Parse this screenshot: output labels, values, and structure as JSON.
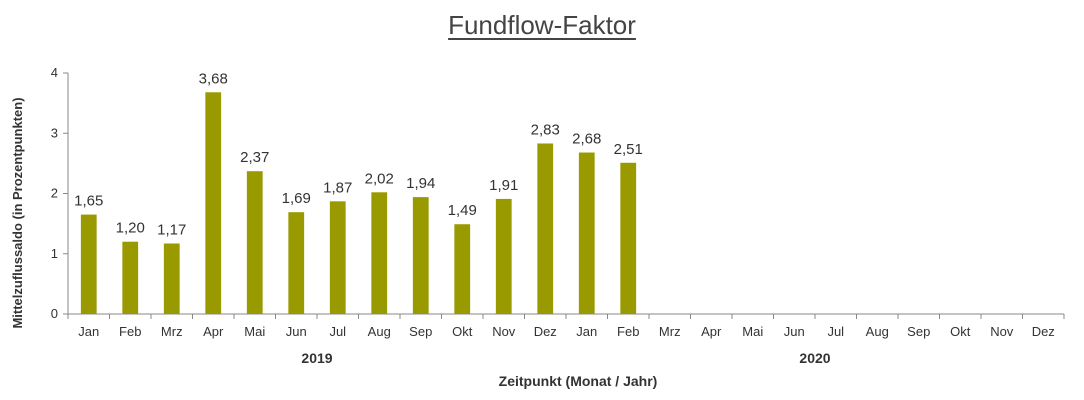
{
  "chart_data": {
    "type": "bar",
    "title": "Fundflow-Faktor",
    "ylabel": "Mittelzuflussaldo (in Prozentpunkten)",
    "xlabel": "Zeitpunkt (Monat / Jahr)",
    "ylim": [
      0,
      4
    ],
    "yticks": [
      "0",
      "1",
      "2",
      "3",
      "4"
    ],
    "grid": false,
    "bar_color": "#999900",
    "categories": [
      "Jan",
      "Feb",
      "Mrz",
      "Apr",
      "Mai",
      "Jun",
      "Jul",
      "Aug",
      "Sep",
      "Okt",
      "Nov",
      "Dez",
      "Jan",
      "Feb",
      "Mrz",
      "Apr",
      "Mai",
      "Jun",
      "Jul",
      "Aug",
      "Sep",
      "Okt",
      "Nov",
      "Dez"
    ],
    "values": [
      1.65,
      1.2,
      1.17,
      3.68,
      2.37,
      1.69,
      1.87,
      2.02,
      1.94,
      1.49,
      1.91,
      2.83,
      2.68,
      2.51,
      null,
      null,
      null,
      null,
      null,
      null,
      null,
      null,
      null,
      null
    ],
    "value_labels": [
      "1,65",
      "1,20",
      "1,17",
      "3,68",
      "2,37",
      "1,69",
      "1,87",
      "2,02",
      "1,94",
      "1,49",
      "1,91",
      "2,83",
      "2,68",
      "2,51",
      "",
      "",
      "",
      "",
      "",
      "",
      "",
      "",
      "",
      ""
    ],
    "year_groups": [
      {
        "label": "2019",
        "start": 0,
        "end": 11
      },
      {
        "label": "2020",
        "start": 12,
        "end": 23
      }
    ]
  }
}
